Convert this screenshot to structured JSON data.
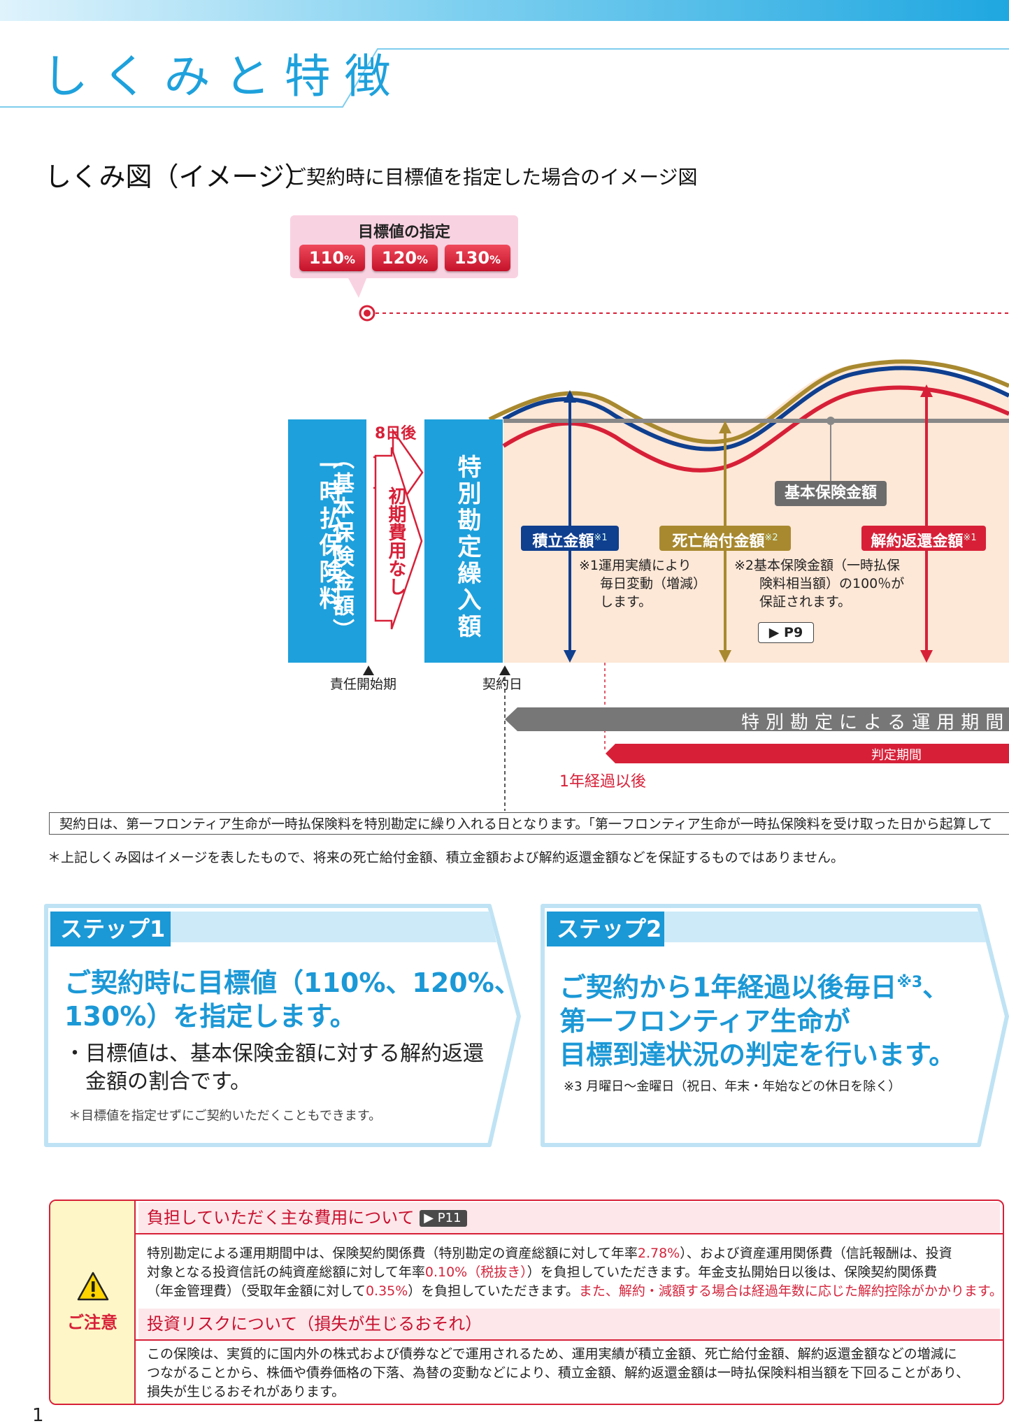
{
  "page": {
    "title": "しくみと特徴",
    "page_number": "1"
  },
  "diagram": {
    "title": "しくみ図（イメージ）",
    "description": "ご契約時に目標値を指定した場合のイメージ図",
    "target": {
      "label": "目標値の指定",
      "options": [
        "110",
        "120",
        "130"
      ],
      "unit": "%"
    },
    "left_box": "一時払保険料",
    "left_box_sub": "（基本保険金額）",
    "days_after": "8日後",
    "no_initial_cost": "初期費用なし",
    "special_account": "特別勘定繰入額",
    "base_amount": "基本保険金額",
    "accumulated": {
      "label": "積立金額",
      "mark": "※1"
    },
    "death_benefit": {
      "label": "死亡給付金額",
      "mark": "※2"
    },
    "surrender": {
      "label": "解約返還金額",
      "mark": "※1"
    },
    "note1": [
      "※1運用実績により",
      "毎日変動（増減）",
      "します。"
    ],
    "note2": [
      "※2基本保険金額（一時払保",
      "険料相当額）の100％が",
      "保証されます。"
    ],
    "page_ref": "P9",
    "start_of_liability": "責任開始期",
    "contract_date": "契約日",
    "operation_period": "特別勘定による運用期間",
    "judgment_period": "判定期間",
    "after_one_year": "1年経過以後"
  },
  "note_box": "契約日は、第一フロンティア生命が一時払保険料を特別勘定に繰り入れる日となります。「第一フロンティア生命が一時払保険料を受け取った日から起算して",
  "asterisk_note": "＊上記しくみ図はイメージを表したもので、将来の死亡給付金額、積立金額および解約返還金額などを保証するものではありません。",
  "steps": [
    {
      "label": "ステップ1",
      "main_lines": [
        "ご契約時に目標値（110%、120%、",
        "130%）を指定します。"
      ],
      "body_lines": [
        "・目標値は、基本保険金額に対する解約返還",
        "　金額の割合です。"
      ],
      "note": "＊目標値を指定せずにご契約いただくこともできます。"
    },
    {
      "label": "ステップ2",
      "main_lines": [
        "ご契約から1年経過以後毎日",
        "第一フロンティア生命が",
        "目標到達状況の判定を行います。"
      ],
      "main_mark": "※3",
      "main_suffix": "、",
      "note": "※3 月曜日〜金曜日（祝日、年末・年始などの休日を除く）"
    }
  ],
  "caution": {
    "label": "ご注意",
    "section1": {
      "heading": "負担していただく主な費用について",
      "page_ref": "P11",
      "line1_a": "特別勘定による運用期間中は、保険契約関係費（特別勘定の資産総額に対して年率",
      "line1_b": "2.78%",
      "line1_c": "）、および資産運用関係費（信託報酬は、投資",
      "line2_a": "対象となる投資信託の純資産総額に対して年率",
      "line2_b": "0.10%（税抜き）",
      "line2_c": "）を負担していただきます。年金支払開始日以後は、保険契約関係費",
      "line3_a": "（年金管理費）（受取年金額に対して",
      "line3_b": "0.35%",
      "line3_c": "）を負担していただきます。",
      "line3_d": "また、解約・減額する場合は経過年数に応じた解約控除がかかります。"
    },
    "section2": {
      "heading": "投資リスクについて（損失が生じるおそれ）",
      "lines": [
        "この保険は、実質的に国内外の株式および債券などで運用されるため、運用実績が積立金額、死亡給付金額、解約返還金額などの増減に",
        "つながることから、株価や債券価格の下落、為替の変動などにより、積立金額、解約返還金額は一時払保険料相当額を下回ることがあり、",
        "損失が生じるおそれがあります。"
      ]
    }
  },
  "colors": {
    "brand": "#1ea0dc",
    "red": "#d72038",
    "navy": "#0f3f8f",
    "gold": "#a8892f"
  }
}
